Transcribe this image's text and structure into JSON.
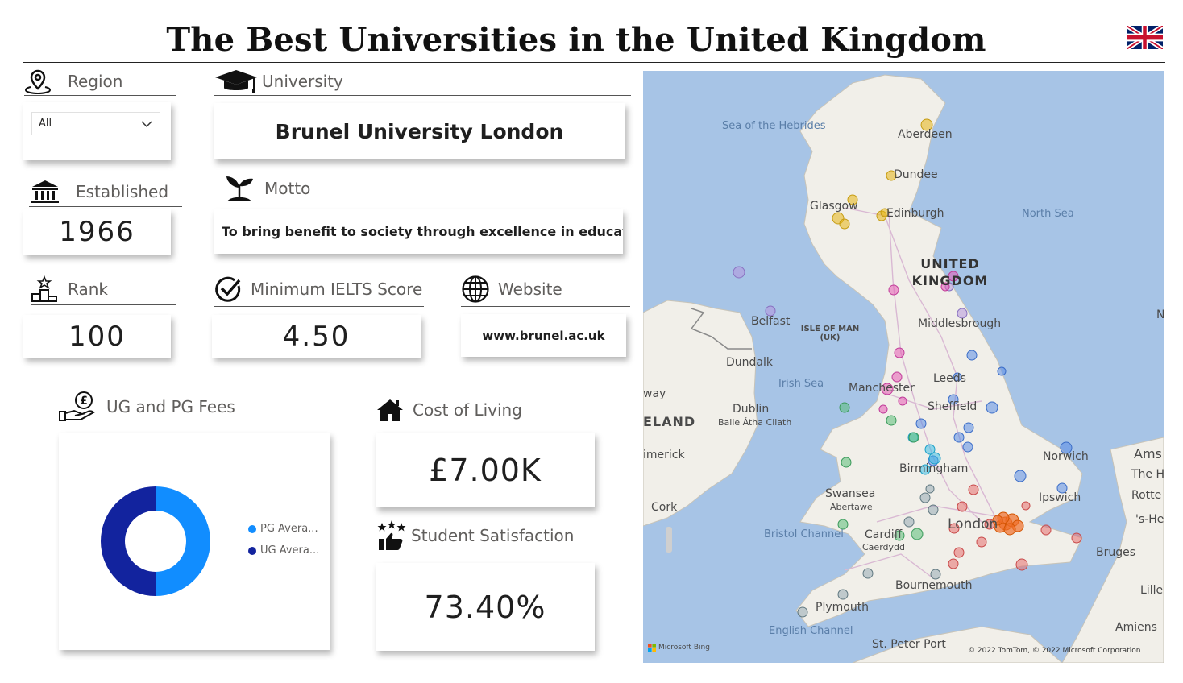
{
  "page": {
    "title": "The Best Universities in the United Kingdom",
    "flag_icon": "uk-flag-icon"
  },
  "filters": {
    "region_label": "Region",
    "region_value": "All",
    "university_label": "University",
    "university_value": "Brunel University London"
  },
  "details": {
    "established_label": "Established",
    "established_value": "1966",
    "motto_label": "Motto",
    "motto_value": "To bring benefit to society through excellence in educatio...",
    "rank_label": "Rank",
    "rank_value": "100",
    "ielts_label": "Minimum IELTS Score",
    "ielts_value": "4.50",
    "website_label": "Website",
    "website_value": "www.brunel.ac.uk"
  },
  "fees": {
    "label": "UG and PG Fees",
    "chart_data": {
      "type": "pie",
      "series": [
        {
          "name": "PG Avera...",
          "value": 50,
          "color": "#118dff"
        },
        {
          "name": "UG Avera...",
          "value": 50,
          "color": "#12239e"
        }
      ]
    }
  },
  "cost": {
    "label": "Cost of Living",
    "value": "£7.00K"
  },
  "satisfaction": {
    "label": "Student Satisfaction",
    "value": "73.40%"
  },
  "map": {
    "labels": {
      "sea_hebrides": "Sea of the Hebrides",
      "aberdeen": "Aberdeen",
      "dundee": "Dundee",
      "glasgow": "Glasgow",
      "edinburgh": "Edinburgh",
      "north_sea": "North Sea",
      "uk": "UNITED KINGDOM",
      "belfast": "Belfast",
      "isle_of_man": "ISLE OF MAN (UK)",
      "middlesbrough": "Middlesbrough",
      "dundalk": "Dundalk",
      "irish_sea": "Irish Sea",
      "leeds": "Leeds",
      "manchester": "Manchester",
      "way": "way",
      "dublin": "Dublin",
      "baile": "Baile Átha Cliath",
      "sheffield": "Sheffield",
      "eland": "ELAND",
      "imerick": "imerick",
      "norwich": "Norwich",
      "ams": "Ams",
      "the_h": "The H",
      "birmingham": "Birmingham",
      "rotte": "Rotte",
      "cork": "Cork",
      "swansea": "Swansea",
      "abertawe": "Abertawe",
      "ipswich": "Ipswich",
      "she": "'s-He",
      "bristol_channel": "Bristol Channel",
      "cardiff": "Cardiff",
      "caerdydd": "Caerdydd",
      "london": "London",
      "bruges": "Bruges",
      "bournemouth": "Bournemouth",
      "lille": "Lille",
      "plymouth": "Plymouth",
      "amiens": "Amiens",
      "english_channel": "English Channel",
      "st_peter_port": "St. Peter Port",
      "n": "N",
      "bing": "Microsoft Bing",
      "copyright": "© 2022 TomTom, © 2022 Microsoft Corporation"
    },
    "colors": {
      "water": "#a7c4e6",
      "land": "#f1efe9"
    }
  }
}
